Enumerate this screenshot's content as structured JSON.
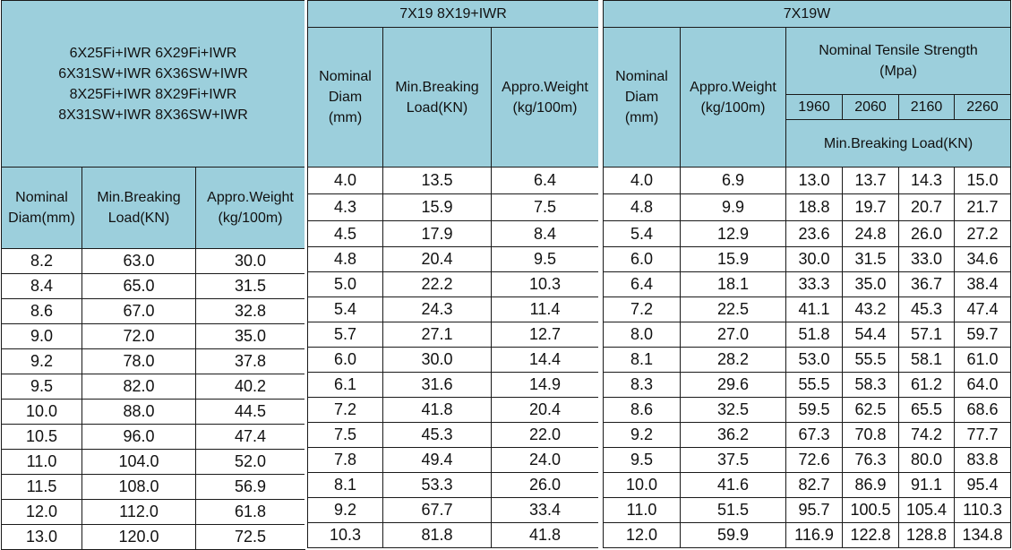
{
  "left": {
    "title_lines": [
      "6X25Fi+IWR 6X29Fi+IWR",
      "6X31SW+IWR 6X36SW+IWR",
      "8X25Fi+IWR 8X29Fi+IWR",
      "8X31SW+IWR 8X36SW+IWR"
    ],
    "headers": {
      "diam": [
        "Nominal",
        "Diam(mm)"
      ],
      "load": [
        "Min.Breaking",
        "Load(KN)"
      ],
      "weight": [
        "Appro.Weight",
        "(kg/100m)"
      ]
    },
    "rows": [
      [
        "8.2",
        "63.0",
        "30.0"
      ],
      [
        "8.4",
        "65.0",
        "31.5"
      ],
      [
        "8.6",
        "67.0",
        "32.8"
      ],
      [
        "9.0",
        "72.0",
        "35.0"
      ],
      [
        "9.2",
        "78.0",
        "37.8"
      ],
      [
        "9.5",
        "82.0",
        "40.2"
      ],
      [
        "10.0",
        "88.0",
        "44.5"
      ],
      [
        "10.5",
        "96.0",
        "47.4"
      ],
      [
        "11.0",
        "104.0",
        "52.0"
      ],
      [
        "11.5",
        "108.0",
        "56.9"
      ],
      [
        "12.0",
        "112.0",
        "61.8"
      ],
      [
        "13.0",
        "120.0",
        "72.5"
      ]
    ]
  },
  "middle": {
    "title": "7X19  8X19+IWR",
    "headers": {
      "diam": [
        "Nominal",
        "Diam",
        "(mm)"
      ],
      "load": [
        "Min.Breaking",
        "Load(KN)"
      ],
      "weight": [
        "Appro.Weight",
        "(kg/100m)"
      ]
    },
    "rows": [
      [
        "4.0",
        "13.5",
        "6.4"
      ],
      [
        "4.3",
        "15.9",
        "7.5"
      ],
      [
        "4.5",
        "17.9",
        "8.4"
      ],
      [
        "4.8",
        "20.4",
        "9.5"
      ],
      [
        "5.0",
        "22.2",
        "10.3"
      ],
      [
        "5.4",
        "24.3",
        "11.4"
      ],
      [
        "5.7",
        "27.1",
        "12.7"
      ],
      [
        "6.0",
        "30.0",
        "14.4"
      ],
      [
        "6.1",
        "31.6",
        "14.9"
      ],
      [
        "7.2",
        "41.8",
        "20.4"
      ],
      [
        "7.5",
        "45.3",
        "22.0"
      ],
      [
        "7.8",
        "49.4",
        "24.0"
      ],
      [
        "8.1",
        "53.3",
        "26.0"
      ],
      [
        "9.2",
        "67.7",
        "33.4"
      ],
      [
        "10.3",
        "81.8",
        "41.8"
      ]
    ]
  },
  "right": {
    "title": "7X19W",
    "headers": {
      "diam": [
        "Nominal",
        "Diam",
        "(mm)"
      ],
      "weight": [
        "Appro.Weight",
        "(kg/100m)"
      ],
      "tensile": [
        "Nominal Tensile Strength",
        "(Mpa)"
      ],
      "grades": [
        "1960",
        "2060",
        "2160",
        "2260"
      ],
      "load": "Min.Breaking Load(KN)"
    },
    "rows": [
      [
        "4.0",
        "6.9",
        "13.0",
        "13.7",
        "14.3",
        "15.0"
      ],
      [
        "4.8",
        "9.9",
        "18.8",
        "19.7",
        "20.7",
        "21.7"
      ],
      [
        "5.4",
        "12.9",
        "23.6",
        "24.8",
        "26.0",
        "27.2"
      ],
      [
        "6.0",
        "15.9",
        "30.0",
        "31.5",
        "33.0",
        "34.6"
      ],
      [
        "6.4",
        "18.1",
        "33.3",
        "35.0",
        "36.7",
        "38.4"
      ],
      [
        "7.2",
        "22.5",
        "41.1",
        "43.2",
        "45.3",
        "47.4"
      ],
      [
        "8.0",
        "27.0",
        "51.8",
        "54.4",
        "57.1",
        "59.7"
      ],
      [
        "8.1",
        "28.2",
        "53.0",
        "55.5",
        "58.1",
        "61.0"
      ],
      [
        "8.3",
        "29.6",
        "55.5",
        "58.3",
        "61.2",
        "64.0"
      ],
      [
        "8.6",
        "32.5",
        "59.5",
        "62.5",
        "65.5",
        "68.6"
      ],
      [
        "9.2",
        "36.2",
        "67.3",
        "70.8",
        "74.2",
        "77.7"
      ],
      [
        "9.5",
        "37.5",
        "72.6",
        "76.3",
        "80.0",
        "83.8"
      ],
      [
        "10.0",
        "41.6",
        "82.7",
        "86.9",
        "91.1",
        "95.4"
      ],
      [
        "11.0",
        "51.5",
        "95.7",
        "100.5",
        "105.4",
        "110.3"
      ],
      [
        "12.0",
        "59.9",
        "116.9",
        "122.8",
        "128.8",
        "134.8"
      ]
    ]
  }
}
